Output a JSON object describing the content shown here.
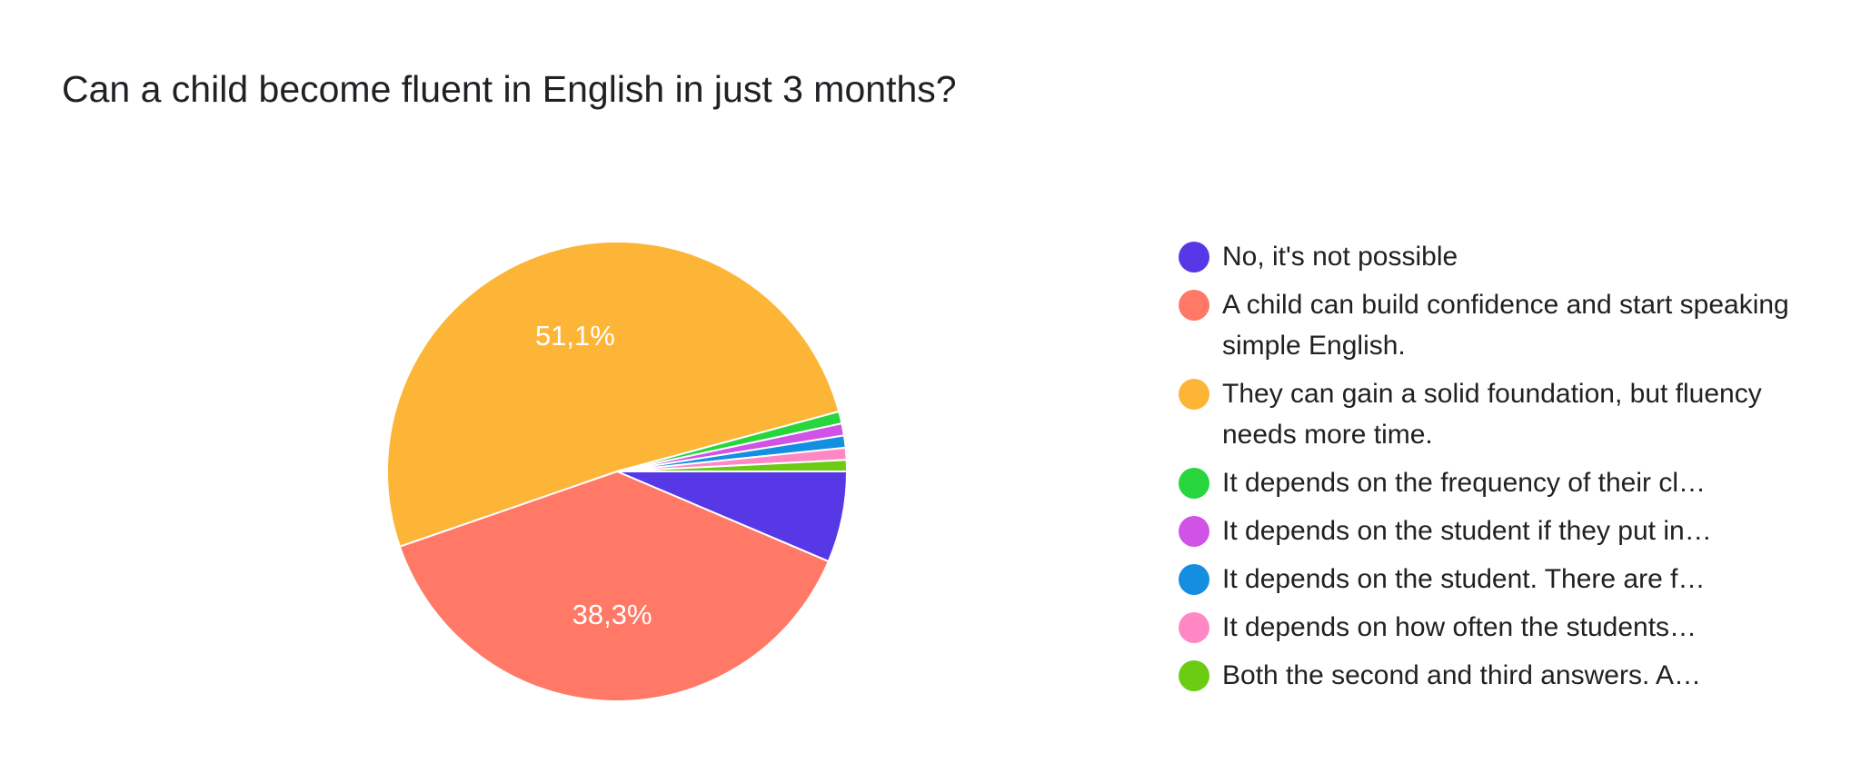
{
  "page": {
    "title": "Can a child become fluent in English in just 3 months?"
  },
  "chart_data": {
    "type": "pie",
    "title": "Can a child become fluent in English in just 3 months?",
    "legend_position": "right",
    "start_angle": "3 o'clock, counter-clockwise",
    "slices": [
      {
        "label": "No, it's not possible",
        "value": 6.4,
        "color": "#5738e6",
        "data_label": ""
      },
      {
        "label": "A child can build confidence and start speaking simple English.",
        "value": 38.3,
        "color": "#ff7966",
        "data_label": "38,3%"
      },
      {
        "label": "They can gain a solid foundation, but fluency needs more time.",
        "value": 51.1,
        "color": "#fdb538",
        "data_label": "51,1%"
      },
      {
        "label": "It depends on the frequency of their cl…",
        "value": 0.85,
        "color": "#27d53d",
        "data_label": ""
      },
      {
        "label": "It depends on the student if they put in…",
        "value": 0.85,
        "color": "#d053e6",
        "data_label": ""
      },
      {
        "label": "It depends on the student. There are f…",
        "value": 0.85,
        "color": "#148ee1",
        "data_label": ""
      },
      {
        "label": "It depends on how often the students…",
        "value": 0.85,
        "color": "#ff88c4",
        "data_label": ""
      },
      {
        "label": "Both the second and third answers. A…",
        "value": 0.8,
        "color": "#6ccc14",
        "data_label": ""
      }
    ]
  }
}
